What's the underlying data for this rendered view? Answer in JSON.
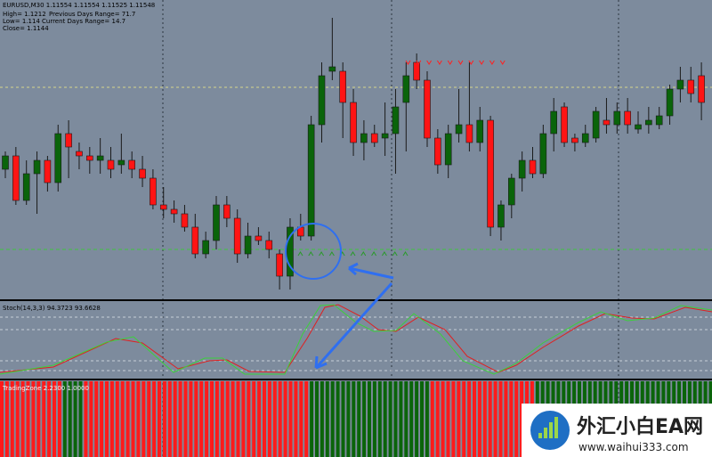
{
  "chart_data": {
    "type": "candlestick",
    "title": "EURUSD,M30 1.11554 1.11554 1.11525 1.11548",
    "annotations": [
      "High= 1.1212",
      "Previous Days Range= 71.7",
      "Low= 1.114",
      "Current Days Range= 14.7",
      "Close= 1.1144",
      "Stoch(14,3,3) 94.3723 93.6628",
      "TradingZone 2.2300 1.0000"
    ],
    "ylim": [
      1.1145,
      1.1212
    ],
    "bull_color": "#0a640a",
    "bear_color": "#ff1414",
    "open": [
      1.1174,
      1.1177,
      1.1167,
      1.1173,
      1.1176,
      1.1171,
      1.1182,
      1.1178,
      1.1177,
      1.1176,
      1.1176,
      1.1175,
      1.1176,
      1.1174,
      1.1172,
      1.1166,
      1.1165,
      1.1164,
      1.1161,
      1.1155,
      1.1158,
      1.1166,
      1.1163,
      1.1155,
      1.1159,
      1.1158,
      1.1155,
      1.115,
      1.1161,
      1.1159,
      1.1184,
      1.1196,
      1.1196,
      1.1189,
      1.118,
      1.1182,
      1.1181,
      1.1182,
      1.1189,
      1.1198,
      1.1194,
      1.1181,
      1.1175,
      1.1182,
      1.1184,
      1.118,
      1.1185,
      1.1161,
      1.1166,
      1.1172,
      1.1176,
      1.1173,
      1.1182,
      1.1188,
      1.1181,
      1.118,
      1.1181,
      1.1185,
      1.1184,
      1.1187,
      1.1183,
      1.1184,
      1.1184,
      1.1186,
      1.1192,
      1.1194,
      1.1195
    ],
    "high": [
      1.1178,
      1.1179,
      1.1176,
      1.1178,
      1.1177,
      1.1184,
      1.1185,
      1.118,
      1.1179,
      1.1181,
      1.1179,
      1.1182,
      1.1178,
      1.1177,
      1.1174,
      1.117,
      1.1167,
      1.1166,
      1.1164,
      1.116,
      1.1168,
      1.1168,
      1.1165,
      1.1162,
      1.1161,
      1.116,
      1.1156,
      1.1163,
      1.1164,
      1.1186,
      1.1198,
      1.1208,
      1.1198,
      1.1192,
      1.1185,
      1.1184,
      1.1189,
      1.1192,
      1.1198,
      1.12,
      1.1196,
      1.1183,
      1.1184,
      1.1192,
      1.1198,
      1.1188,
      1.1186,
      1.1167,
      1.1173,
      1.1178,
      1.1179,
      1.1184,
      1.119,
      1.1189,
      1.1182,
      1.1184,
      1.1188,
      1.119,
      1.1189,
      1.119,
      1.1187,
      1.1188,
      1.1188,
      1.1193,
      1.1197,
      1.1197,
      1.1198
    ],
    "low": [
      1.1172,
      1.1166,
      1.1166,
      1.1164,
      1.1169,
      1.1169,
      1.1172,
      1.1174,
      1.1173,
      1.1173,
      1.1172,
      1.1173,
      1.1172,
      1.117,
      1.1165,
      1.1163,
      1.1162,
      1.116,
      1.1154,
      1.1154,
      1.1156,
      1.1161,
      1.1153,
      1.1154,
      1.1157,
      1.1154,
      1.1147,
      1.1147,
      1.1158,
      1.1158,
      1.118,
      1.1194,
      1.1181,
      1.1177,
      1.1176,
      1.1179,
      1.1177,
      1.1173,
      1.1178,
      1.1192,
      1.1179,
      1.1173,
      1.1172,
      1.118,
      1.1178,
      1.1178,
      1.1159,
      1.1158,
      1.1163,
      1.1169,
      1.1172,
      1.1172,
      1.1178,
      1.1179,
      1.1178,
      1.1179,
      1.118,
      1.1182,
      1.1182,
      1.1182,
      1.1182,
      1.1182,
      1.1183,
      1.1184,
      1.1189,
      1.1189,
      1.1185
    ],
    "close": [
      1.1177,
      1.1167,
      1.1173,
      1.1176,
      1.1171,
      1.1182,
      1.1179,
      1.1177,
      1.1176,
      1.1177,
      1.1174,
      1.1176,
      1.1174,
      1.1172,
      1.1166,
      1.1165,
      1.1164,
      1.1161,
      1.1155,
      1.1158,
      1.1166,
      1.1163,
      1.1155,
      1.1159,
      1.1158,
      1.1156,
      1.115,
      1.1161,
      1.1159,
      1.1184,
      1.1195,
      1.1197,
      1.1189,
      1.118,
      1.1182,
      1.118,
      1.1182,
      1.1188,
      1.1195,
      1.1194,
      1.1181,
      1.1175,
      1.1182,
      1.1184,
      1.118,
      1.1185,
      1.1161,
      1.1166,
      1.1172,
      1.1176,
      1.1173,
      1.1182,
      1.1187,
      1.118,
      1.118,
      1.1182,
      1.1187,
      1.1184,
      1.1187,
      1.1184,
      1.1184,
      1.1185,
      1.1186,
      1.1192,
      1.1194,
      1.1191,
      1.1189
    ]
  },
  "watermark": {
    "title": "外汇小白EA网",
    "url": "www.waihui333.com"
  }
}
